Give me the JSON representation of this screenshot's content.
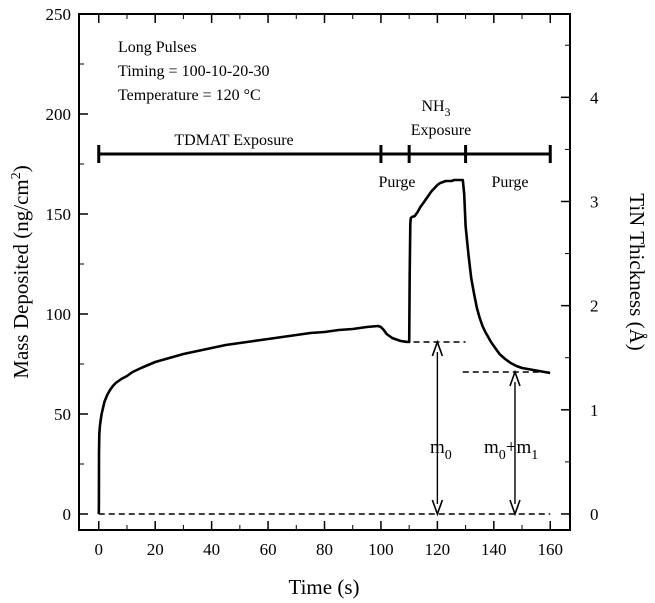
{
  "chart_data": {
    "type": "line",
    "xlabel": "Time (s)",
    "ylabel": "Mass Deposited (ng/cm",
    "ylabel_sup": "2",
    "ylabel_close": ")",
    "y2label": "TiN Thickness (Å)",
    "xlim": [
      -7,
      167
    ],
    "ylim": [
      -8,
      250
    ],
    "y2lim": [
      -0.154,
      4.8
    ],
    "x_ticks": [
      0,
      20,
      40,
      60,
      80,
      100,
      120,
      140,
      160
    ],
    "x_ticks_text": [
      "0",
      "20",
      "40",
      "60",
      "80",
      "100",
      "120",
      "140",
      "160"
    ],
    "y_ticks": [
      0,
      50,
      100,
      150,
      200,
      250
    ],
    "y_ticks_text": [
      "0",
      "50",
      "100",
      "150",
      "200",
      "250"
    ],
    "y2_ticks": [
      0,
      1,
      2,
      3,
      4
    ],
    "y2_ticks_text": [
      "0",
      "1",
      "2",
      "3",
      "4"
    ],
    "annotations": {
      "line1": "Long Pulses",
      "line2": "Timing = 100-10-20-30",
      "line3": "Temperature = 120 °C"
    },
    "phases": {
      "tdmat": "TDMAT Exposure",
      "purge1": "Purge",
      "nh3_main": "NH",
      "nh3_sub": "3",
      "nh3_line2": "Exposure",
      "purge2": "Purge"
    },
    "phase_bar": {
      "y": 180,
      "ticks": [
        0,
        100,
        110,
        130,
        160
      ]
    },
    "arrow_labels": {
      "m0": "m",
      "m0_sub": "0",
      "m01_a": "m",
      "m01_a_sub": "0",
      "m01_plus": "+m",
      "m01_b_sub": "1"
    },
    "series": [
      {
        "x": [
          0,
          0.05,
          0.1,
          0.2,
          0.4,
          0.7,
          1,
          1.5,
          2,
          3,
          4,
          5,
          6,
          8,
          10,
          12,
          15,
          20,
          25,
          30,
          35,
          40,
          45,
          50,
          55,
          60,
          65,
          70,
          75,
          80,
          85,
          90,
          95,
          99,
          100,
          101,
          102,
          103,
          104,
          105,
          106,
          107,
          108,
          109,
          110,
          110.2,
          110.4,
          110.6,
          111,
          112,
          113,
          114,
          115,
          116,
          117,
          118,
          119,
          120,
          121,
          122,
          123,
          124,
          125,
          126,
          127,
          128,
          129,
          129.5,
          130,
          131,
          132,
          133,
          134,
          135,
          136,
          137,
          138,
          139,
          140,
          142,
          144,
          146,
          148,
          150,
          152,
          154,
          156,
          158,
          160
        ],
        "y": [
          0,
          5,
          30,
          40,
          44,
          47,
          50,
          53,
          56,
          59.5,
          62,
          64,
          65.5,
          67.5,
          69,
          71,
          73,
          76,
          78,
          80,
          81.5,
          83,
          84.5,
          85.5,
          86.5,
          87.5,
          88.5,
          89.5,
          90.5,
          91,
          92,
          92.5,
          93.5,
          94,
          93.5,
          92,
          90,
          89,
          88,
          87.5,
          87,
          86.5,
          86.3,
          86.1,
          86,
          120,
          145,
          148,
          148.5,
          149,
          151,
          153.5,
          155.5,
          157.5,
          159.5,
          161.5,
          163,
          164.5,
          165.5,
          166,
          166.5,
          166.5,
          166.5,
          167,
          167,
          167,
          167,
          160,
          144,
          130,
          118,
          110,
          103,
          98,
          94,
          91,
          88.5,
          86,
          84,
          80,
          77.5,
          75.5,
          74,
          73,
          72.5,
          72,
          71.5,
          71,
          70.5
        ]
      }
    ],
    "reference_lines": [
      {
        "y": 0,
        "x": [
          0,
          160
        ],
        "style": "dashed"
      },
      {
        "y": 86,
        "x": [
          108,
          130
        ],
        "style": "dashed"
      },
      {
        "y": 71,
        "x": [
          129,
          160
        ],
        "style": "dashed"
      }
    ],
    "arrows": [
      {
        "x": 120,
        "from": 0,
        "to": 86
      },
      {
        "x": 147.5,
        "from": 0,
        "to": 71
      }
    ]
  }
}
